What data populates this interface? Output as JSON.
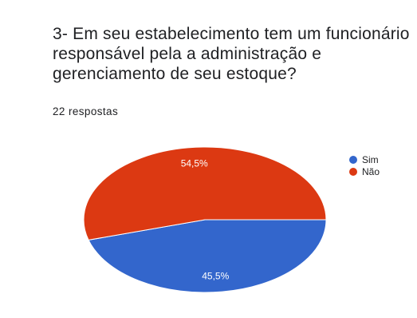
{
  "question": {
    "title": "3- Em seu estabelecimento tem um funcionário responsável pela a administração e gerenciamento de seu estoque?",
    "responses_label": "22 respostas"
  },
  "chart_data": {
    "type": "pie",
    "title": "",
    "categories": [
      "Sim",
      "Não"
    ],
    "values": [
      45.5,
      54.5
    ],
    "labels": [
      "45,5%",
      "54,5%"
    ],
    "colors": [
      "#3366cc",
      "#dc3912"
    ],
    "legend_position": "right"
  }
}
